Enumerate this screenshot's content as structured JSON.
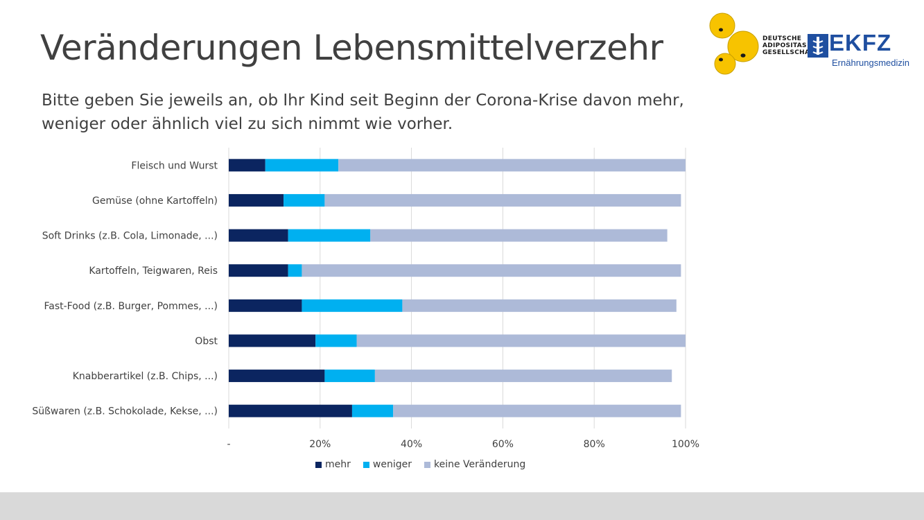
{
  "page": {
    "title": "Veränderungen Lebensmittelverzehr",
    "subtitle_line1": "Bitte geben Sie jeweils an, ob Ihr Kind seit Beginn der Corona-Krise davon mehr,",
    "subtitle_line2": "weniger oder ähnlich viel zu sich nimmt wie vorher."
  },
  "logos": {
    "dag_line1": "Deutsche",
    "dag_line2": "Adipositas",
    "dag_line3": "Gesellschaft",
    "ekfz_name": "EKFZ",
    "ekfz_sub": "Ernährungsmedizin"
  },
  "colors": {
    "mehr": "#0b2560",
    "weniger": "#00b0f0",
    "keine": "#adbad8",
    "grid": "#d9d9d9",
    "text": "#404040",
    "footer": "#d9d9d9"
  },
  "chart_data": {
    "type": "bar",
    "orientation": "horizontal",
    "stacked": true,
    "categories": [
      "Fleisch und Wurst",
      "Gemüse (ohne Kartoffeln)",
      "Soft Drinks (z.B. Cola, Limonade, ...)",
      "Kartoffeln, Teigwaren, Reis",
      "Fast-Food (z.B. Burger, Pommes, ...)",
      "Obst",
      "Knabberartikel (z.B. Chips, ...)",
      "Süßwaren (z.B. Schokolade, Kekse, ...)"
    ],
    "series": [
      {
        "name": "mehr",
        "values": [
          8,
          12,
          13,
          13,
          16,
          19,
          21,
          27
        ]
      },
      {
        "name": "weniger",
        "values": [
          16,
          9,
          18,
          3,
          22,
          9,
          11,
          9
        ]
      },
      {
        "name": "keine Veränderung",
        "values": [
          76,
          78,
          65,
          83,
          60,
          72,
          65,
          63
        ]
      }
    ],
    "xlim": [
      0,
      100
    ],
    "xticks": [
      "-",
      "20%",
      "40%",
      "60%",
      "80%",
      "100%"
    ],
    "grid": true,
    "legend_position": "bottom"
  }
}
